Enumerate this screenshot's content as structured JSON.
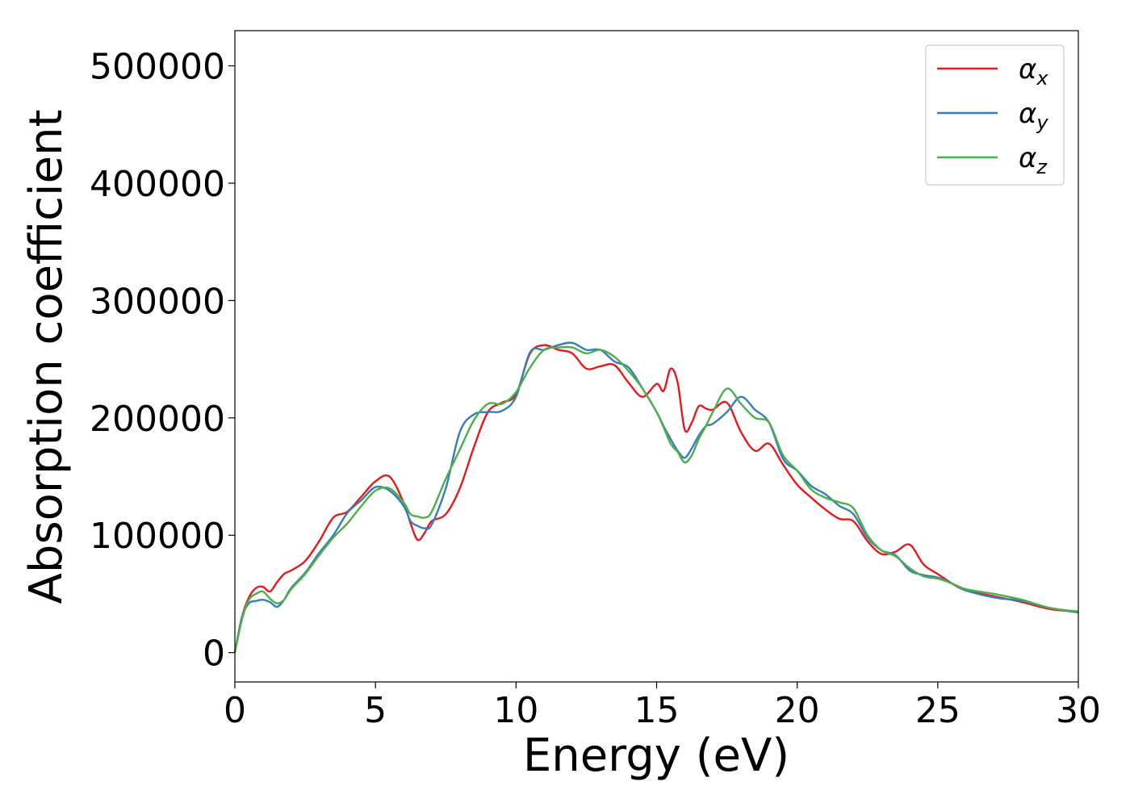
{
  "chart_data": {
    "type": "line",
    "title": "",
    "xlabel": "Energy (eV)",
    "ylabel": "Absorption coefficient",
    "xlim": [
      0,
      30
    ],
    "ylim": [
      -25000,
      530000
    ],
    "xticks": [
      0,
      5,
      10,
      15,
      20,
      25,
      30
    ],
    "xtick_labels": [
      "0",
      "5",
      "10",
      "15",
      "20",
      "25",
      "30"
    ],
    "yticks": [
      0,
      100000,
      200000,
      300000,
      400000,
      500000
    ],
    "ytick_labels": [
      "0",
      "100000",
      "200000",
      "300000",
      "400000",
      "500000"
    ],
    "grid": false,
    "legend_position": "top-right",
    "x": [
      0,
      0.25,
      0.5,
      0.75,
      1.0,
      1.25,
      1.5,
      1.75,
      2.0,
      2.5,
      3.0,
      3.5,
      4.0,
      4.5,
      5.0,
      5.5,
      6.0,
      6.25,
      6.5,
      6.75,
      7.0,
      7.5,
      8.0,
      8.5,
      9.0,
      9.5,
      10.0,
      10.5,
      11.0,
      11.5,
      12.0,
      12.5,
      13.0,
      13.5,
      14.0,
      14.5,
      15.0,
      15.25,
      15.5,
      15.75,
      16.0,
      16.25,
      16.5,
      16.75,
      17.0,
      17.5,
      18.0,
      18.5,
      19.0,
      19.5,
      20.0,
      20.5,
      21.0,
      21.5,
      22.0,
      22.5,
      23.0,
      23.5,
      24.0,
      24.5,
      25.0,
      25.5,
      26.0,
      27.0,
      28.0,
      29.0,
      30.0
    ],
    "series": [
      {
        "name": "α",
        "subscript": "x",
        "color": "#e41a1c",
        "values": [
          0,
          30000,
          47000,
          55000,
          56000,
          52000,
          60000,
          67000,
          70000,
          78000,
          95000,
          115000,
          120000,
          133000,
          146000,
          150000,
          128000,
          110000,
          96000,
          102000,
          112000,
          118000,
          140000,
          175000,
          205000,
          213000,
          220000,
          255000,
          262000,
          258000,
          255000,
          242000,
          244000,
          245000,
          230000,
          218000,
          229000,
          223000,
          242000,
          230000,
          190000,
          196000,
          210000,
          208000,
          207000,
          213000,
          188000,
          172000,
          178000,
          160000,
          143000,
          132000,
          122000,
          114000,
          112000,
          95000,
          84000,
          86000,
          92000,
          75000,
          67000,
          59000,
          53000,
          48000,
          43000,
          37000,
          35000
        ]
      },
      {
        "name": "α",
        "subscript": "y",
        "color": "#377eb8",
        "values": [
          0,
          30000,
          42000,
          44000,
          45000,
          43000,
          39000,
          45000,
          55000,
          68000,
          85000,
          100000,
          119000,
          130000,
          141000,
          138000,
          125000,
          112000,
          108000,
          106000,
          109000,
          140000,
          188000,
          203000,
          205000,
          206000,
          218000,
          256000,
          258000,
          262000,
          264000,
          258000,
          258000,
          248000,
          243000,
          225000,
          205000,
          193000,
          182000,
          172000,
          166000,
          174000,
          185000,
          193000,
          195000,
          205000,
          218000,
          207000,
          196000,
          165000,
          155000,
          142000,
          135000,
          125000,
          118000,
          98000,
          87000,
          83000,
          70000,
          66000,
          64000,
          59000,
          53000,
          47000,
          44000,
          38000,
          34000
        ]
      },
      {
        "name": "α",
        "subscript": "z",
        "color": "#4daf4a",
        "values": [
          0,
          28000,
          45000,
          50000,
          52000,
          46000,
          42000,
          45000,
          54000,
          67000,
          83000,
          98000,
          110000,
          125000,
          138000,
          140000,
          128000,
          118000,
          116000,
          115000,
          120000,
          148000,
          173000,
          198000,
          212000,
          212000,
          222000,
          243000,
          258000,
          260000,
          260000,
          255000,
          258000,
          252000,
          240000,
          225000,
          205000,
          192000,
          178000,
          171000,
          162000,
          168000,
          182000,
          193000,
          205000,
          225000,
          212000,
          200000,
          196000,
          168000,
          155000,
          139000,
          132000,
          128000,
          123000,
          100000,
          87000,
          82000,
          72000,
          65000,
          63000,
          59000,
          54000,
          50000,
          45000,
          38000,
          35000
        ]
      }
    ]
  }
}
